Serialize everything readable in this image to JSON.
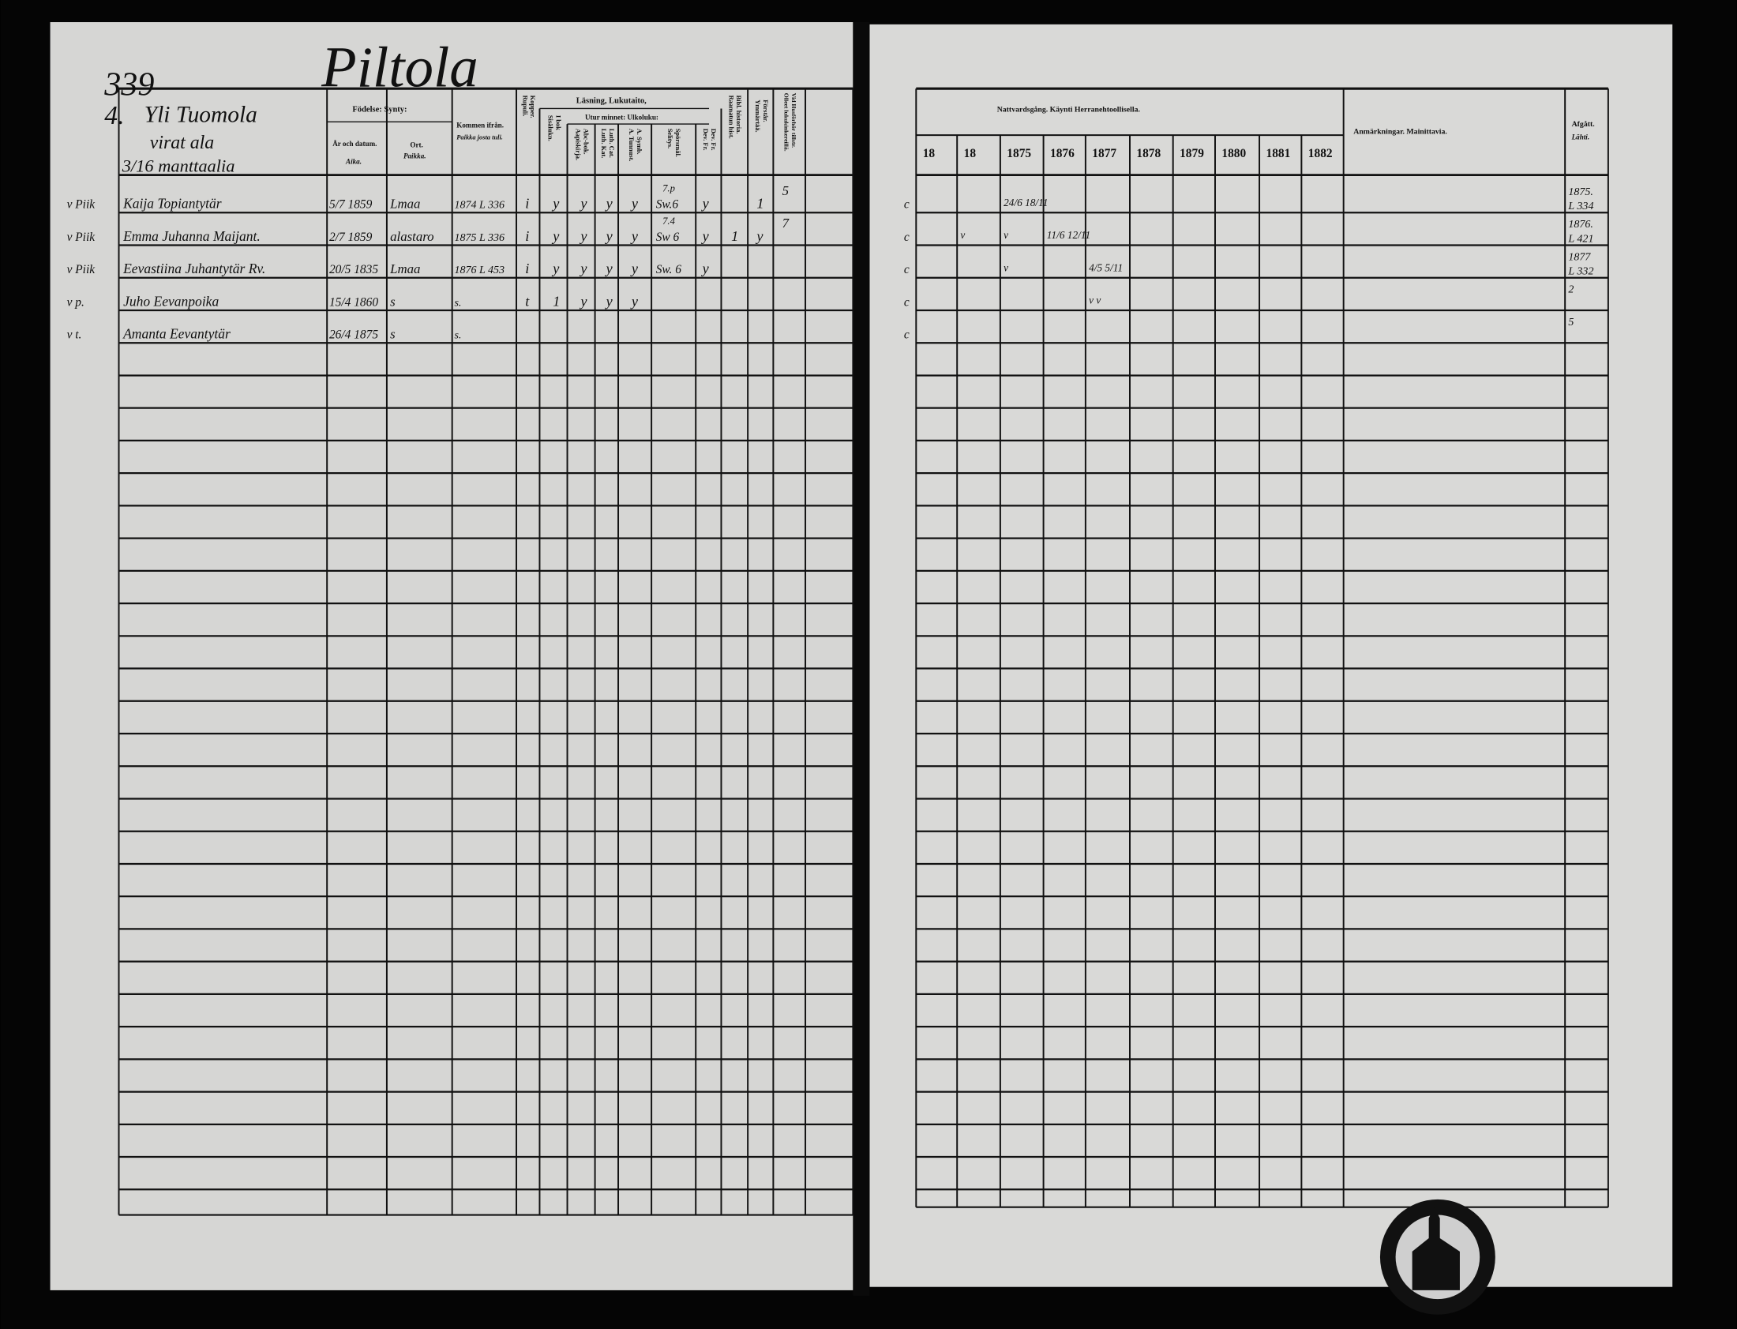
{
  "left_page": {
    "page_number": "339",
    "village": "Piltola",
    "household": {
      "number": "4.",
      "name": "Yli Tuomola",
      "line2": "virat ala",
      "line3": "3/16 manttaalia"
    },
    "headers": {
      "birth": "Födelse: Synty:",
      "year_date": "År och datum.",
      "year_date_fi": "Aika.",
      "place": "Ort.",
      "place_fi": "Paikka.",
      "came_from": "Kommen ifrån.",
      "came_from_fi": "Paikka josta tuli.",
      "pox": "Kopper. Rupuli.",
      "reading": "Läsning, Lukutaito,",
      "by_heart": "Utur minnet: Ulkoluku:",
      "in_book": "I bok Sisälukn.",
      "abc": "Abc-bok. Aapiskirja.",
      "catechism": "Luth. Cat. Luth. Kat.",
      "a_symb": "A. Symb. A. Tunnust.",
      "questions": "Spörsmål. Selitys.",
      "dev": "Dev. Fr. Dev. Fr.",
      "bible": "Bibl. historia. Raamatun hist.",
      "understanding": "Förstår. Ymmärtää.",
      "last": "Vid Husförhör tillstr. Olleet lukukinkereillä."
    },
    "rows": [
      {
        "mark": "v Piik",
        "name": "Kaija Topiantytär",
        "birth": "5/7 1859",
        "place": "Lmaa",
        "came_from": "1874 L 336",
        "pox": "i",
        "reading": [
          "y",
          "y",
          "y",
          "y"
        ],
        "questions": "Sw.6",
        "questions_note": "7.p",
        "dev": "y",
        "bible": "",
        "understanding": "1",
        "last": "5"
      },
      {
        "mark": "v Piik",
        "name": "Emma Juhanna Maijant.",
        "birth": "2/7 1859",
        "place": "alastaro",
        "came_from": "1875 L 336",
        "pox": "i",
        "reading": [
          "y",
          "y",
          "y",
          "y"
        ],
        "questions": "Sw 6",
        "questions_note": "7.4",
        "dev": "y",
        "bible": "1",
        "understanding": "y",
        "last": "7"
      },
      {
        "mark": "v Piik",
        "name": "Eevastiina Juhantytär Rv.",
        "birth": "20/5 1835",
        "place": "Lmaa",
        "came_from": "1876 L 453",
        "pox": "i",
        "reading": [
          "y",
          "y",
          "y",
          "y"
        ],
        "questions": "Sw. 6",
        "questions_note": "",
        "dev": "y",
        "bible": "",
        "understanding": "",
        "last": ""
      },
      {
        "mark": "v p.",
        "name": "Juho Eevanpoika",
        "birth": "15/4 1860",
        "place": "s",
        "came_from": "s.",
        "pox": "t",
        "reading": [
          "1",
          "y",
          "y",
          "y"
        ],
        "questions": "",
        "questions_note": "",
        "dev": "",
        "bible": "",
        "understanding": "",
        "last": ""
      },
      {
        "mark": "v t.",
        "name": "Amanta Eevantytär",
        "birth": "26/4 1875",
        "place": "s",
        "came_from": "s.",
        "pox": "",
        "reading": [
          "",
          "",
          "",
          ""
        ],
        "questions": "",
        "questions_note": "",
        "dev": "",
        "bible": "",
        "understanding": "",
        "last": ""
      }
    ]
  },
  "right_page": {
    "headers": {
      "communion": "Nattvardsgång. Käynti Herranehtoollisella.",
      "remarks": "Anmärkningar. Mainittavia.",
      "departed": "Afgått.",
      "departed_fi": "Lähti."
    },
    "years": [
      "18",
      "18",
      "1875",
      "1876",
      "1877",
      "1878",
      "1879",
      "1880",
      "1881",
      "1882"
    ],
    "rows": [
      {
        "communion": {
          "2": "24/6 18/11"
        },
        "departed": [
          "1875.",
          "L 334"
        ]
      },
      {
        "communion": {
          "1": "v",
          "2": "v",
          "3": "11/6 12/11"
        },
        "departed": [
          "1876.",
          "L 421"
        ]
      },
      {
        "communion": {
          "2": "v",
          "4": "4/5 5/11"
        },
        "departed": [
          "1877",
          "L 332"
        ]
      },
      {
        "communion": {
          "4": "v v"
        },
        "departed": [
          "2",
          ""
        ]
      },
      {
        "communion": {},
        "departed": [
          "5",
          ""
        ]
      }
    ]
  },
  "colors": {
    "paper": "#d9d9d7",
    "ink": "#111111",
    "background": "#000000"
  }
}
